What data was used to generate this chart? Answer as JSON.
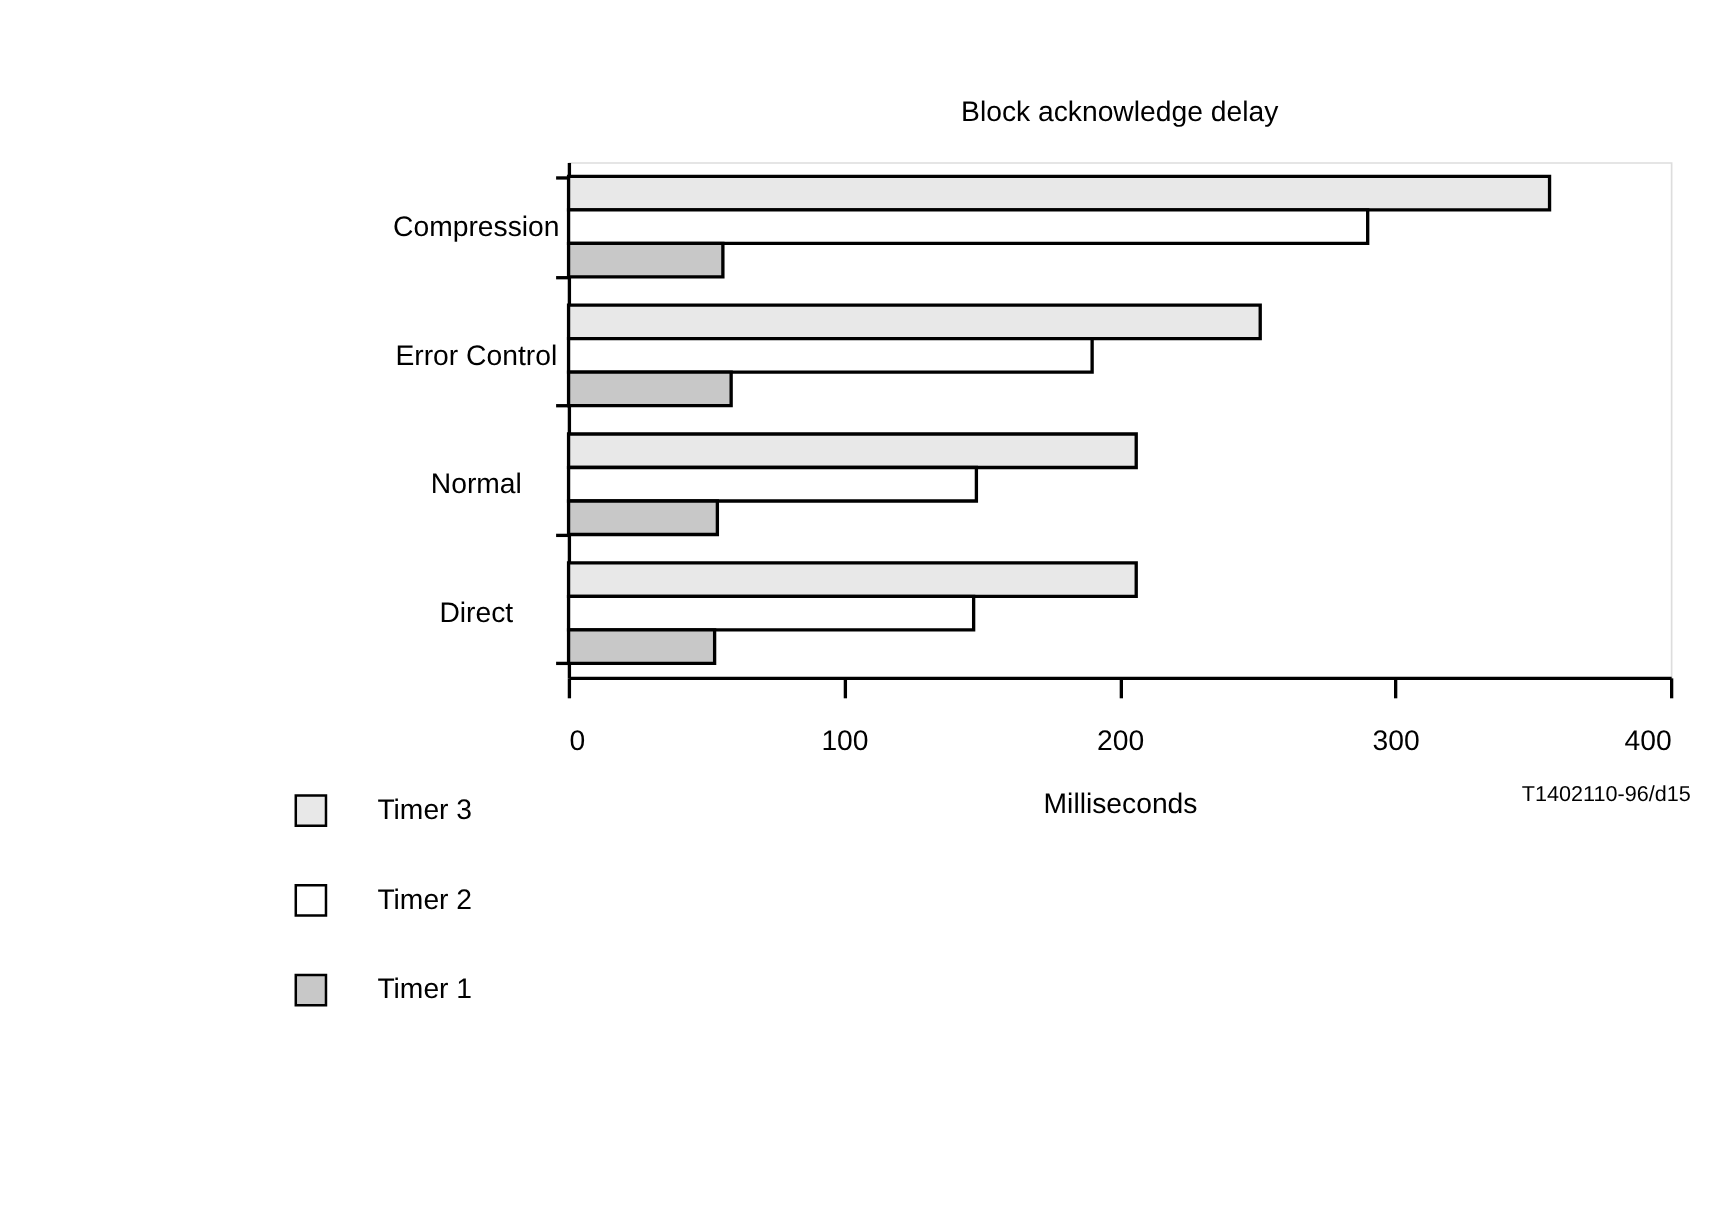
{
  "chart_data": {
    "type": "bar",
    "orientation": "horizontal",
    "title": "Block acknowledge delay",
    "xlabel": "Milliseconds",
    "categories": [
      "Compression",
      "Error Control",
      "Normal",
      "Direct"
    ],
    "series": [
      {
        "name": "Timer 3",
        "color": "#e8e8e8",
        "values": [
          356,
          251,
          206,
          206
        ]
      },
      {
        "name": "Timer 2",
        "color": "#ffffff",
        "values": [
          290,
          190,
          148,
          147
        ]
      },
      {
        "name": "Timer 1",
        "color": "#c8c8c8",
        "values": [
          56,
          59,
          54,
          53
        ]
      }
    ],
    "xlim": [
      0,
      400
    ],
    "xticks": [
      0,
      100,
      200,
      300,
      400
    ],
    "grid": false,
    "legend": "bottom left",
    "annotations": [
      "T1402110-96/d15"
    ]
  }
}
